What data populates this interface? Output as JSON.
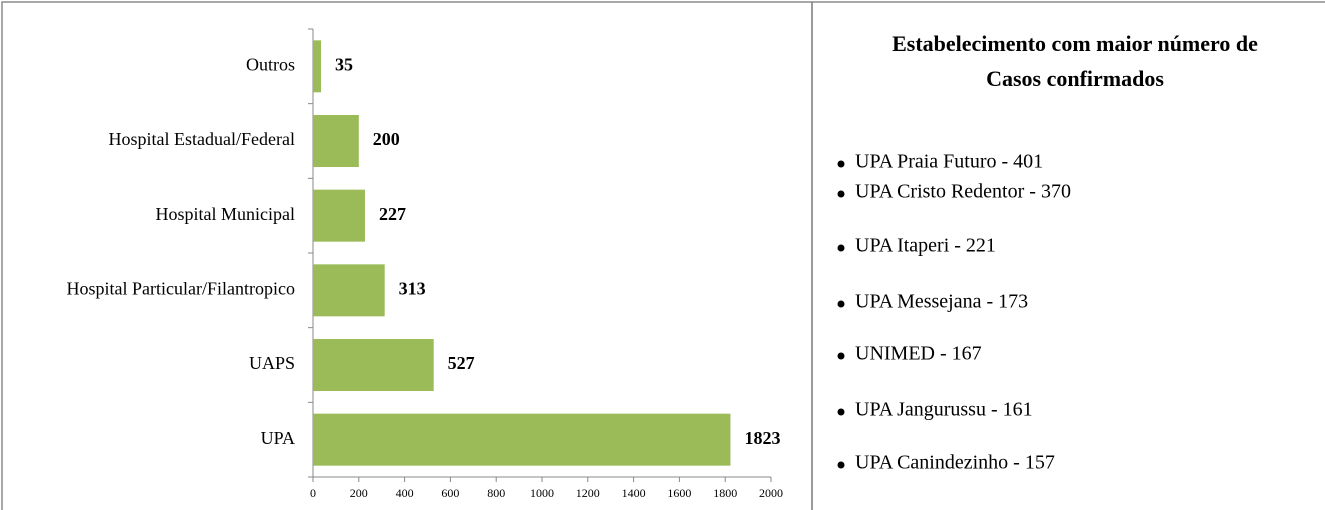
{
  "chart_data": {
    "type": "bar",
    "orientation": "horizontal",
    "categories": [
      "Outros",
      "Hospital Estadual/Federal",
      "Hospital Municipal",
      "Hospital Particular/Filantropico",
      "UAPS",
      "UPA"
    ],
    "values": [
      35,
      200,
      227,
      313,
      527,
      1823
    ],
    "color": "#9bbb59",
    "xlim": [
      0,
      2000
    ],
    "xticks": [
      0,
      200,
      400,
      600,
      800,
      1000,
      1200,
      1400,
      1600,
      1800,
      2000
    ]
  },
  "panel": {
    "title_lines": [
      "Estabelecimento com maior  número de",
      "Casos confirmados"
    ],
    "items": [
      "UPA Praia Futuro - 401",
      "UPA Cristo Redentor  - 370",
      "UPA Itaperi - 221",
      "UPA Messejana - 173",
      "UNIMED - 167",
      "UPA Jangurussu - 161",
      "UPA Canindezinho - 157"
    ]
  }
}
